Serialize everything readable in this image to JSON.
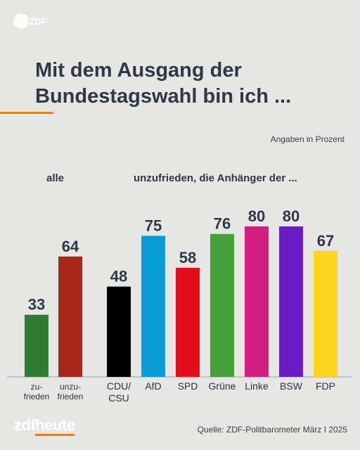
{
  "header": {
    "logo_text": "ZDF",
    "title_line1": "Mit dem Ausgang der",
    "title_line2": "Bundestagswahl bin ich ...",
    "unit_note": "Angaben in Prozent"
  },
  "colors": {
    "accent": "#f07d00",
    "background": "#e6e6e4"
  },
  "chart_data": [
    {
      "type": "bar",
      "title": "alle",
      "categories": [
        "zu-\nfrieden",
        "unzu-\nfrieden"
      ],
      "values": [
        33,
        64
      ],
      "colors": [
        "#2e7d32",
        "#a5281b"
      ],
      "ylim": [
        0,
        100
      ]
    },
    {
      "type": "bar",
      "title": "unzufrieden, die Anhänger der ...",
      "categories": [
        "CDU/\nCSU",
        "AfD",
        "SPD",
        "Grüne",
        "Linke",
        "BSW",
        "FDP"
      ],
      "values": [
        48,
        75,
        58,
        76,
        80,
        80,
        67
      ],
      "colors": [
        "#000000",
        "#0a9cd6",
        "#e3101b",
        "#46a03c",
        "#d21e80",
        "#6a1bc5",
        "#fdd51f"
      ],
      "ylim": [
        0,
        100
      ]
    }
  ],
  "footer": {
    "brand_left": "zdf",
    "brand_right": "heute",
    "source": "Quelle: ZDF-Politbarometer März I 2025"
  }
}
